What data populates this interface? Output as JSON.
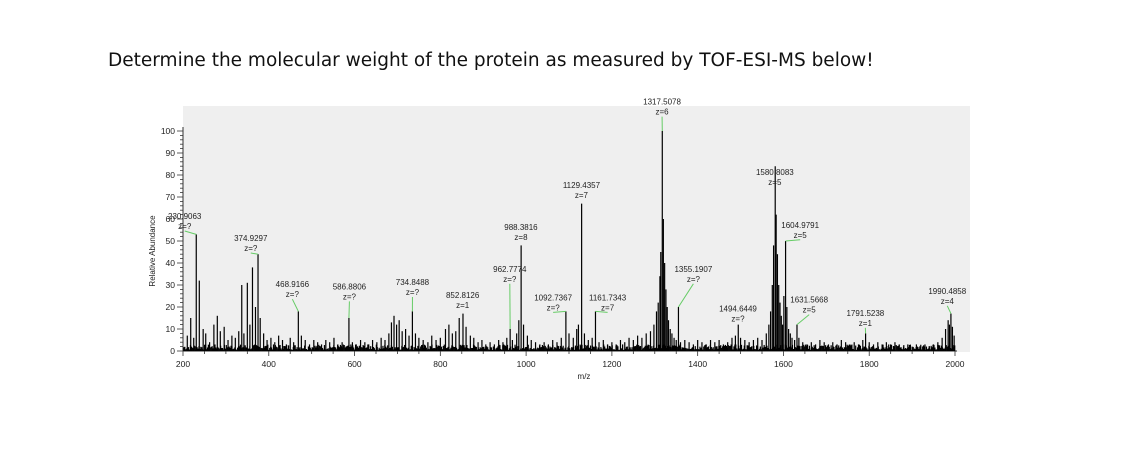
{
  "question": "Determine the molecular weight of the protein as measured by TOF-ESI-MS below!",
  "chart_data": {
    "type": "bar",
    "title": "",
    "xlabel": "m/z",
    "ylabel": "Relative Abundance",
    "xlim": [
      200,
      2000
    ],
    "ylim": [
      0,
      100
    ],
    "x_ticks": [
      200,
      400,
      600,
      800,
      1000,
      1200,
      1400,
      1600,
      1800,
      2000
    ],
    "y_ticks": [
      0,
      10,
      20,
      30,
      40,
      50,
      60,
      70,
      80,
      90,
      100
    ],
    "grid": false,
    "background": "#efefef",
    "bar_color": "#000000",
    "leader_color": "#66cc66",
    "peaks": [
      {
        "mz": 230.9063,
        "intensity": 53,
        "label": "230.9063",
        "charge": "z=?",
        "lx": 204,
        "ly": 60
      },
      {
        "mz": 374.9297,
        "intensity": 44,
        "label": "374.9297",
        "charge": "z=?",
        "lx": 358,
        "ly": 50
      },
      {
        "mz": 468.9166,
        "intensity": 18,
        "label": "468.9166",
        "charge": "z=?",
        "lx": 455,
        "ly": 29
      },
      {
        "mz": 586.8806,
        "intensity": 15,
        "label": "586.8806",
        "charge": "z=?",
        "lx": 588,
        "ly": 28
      },
      {
        "mz": 734.8488,
        "intensity": 18,
        "label": "734.8488",
        "charge": "z=?",
        "lx": 735,
        "ly": 30
      },
      {
        "mz": 852.8126,
        "intensity": 17,
        "label": "852.8126",
        "charge": "z=1",
        "lx": 852,
        "ly": 24
      },
      {
        "mz": 962.7774,
        "intensity": 10,
        "label": "962.7774",
        "charge": "z=?",
        "lx": 962,
        "ly": 36
      },
      {
        "mz": 988.3816,
        "intensity": 48,
        "label": "988.3816",
        "charge": "z=8",
        "lx": 988,
        "ly": 55
      },
      {
        "mz": 1092.7367,
        "intensity": 18,
        "label": "1092.7367",
        "charge": "z=?",
        "lx": 1063,
        "ly": 23
      },
      {
        "mz": 1129.4357,
        "intensity": 67,
        "label": "1129.4357",
        "charge": "z=7",
        "lx": 1129,
        "ly": 74
      },
      {
        "mz": 1161.7343,
        "intensity": 18,
        "label": "1161.7343",
        "charge": "z=7",
        "lx": 1190,
        "ly": 23
      },
      {
        "mz": 1317.5078,
        "intensity": 100,
        "label": "1317.5078",
        "charge": "z=6",
        "lx": 1317,
        "ly": 112
      },
      {
        "mz": 1355.1907,
        "intensity": 20,
        "label": "1355.1907",
        "charge": "z=?",
        "lx": 1390,
        "ly": 36
      },
      {
        "mz": 1494.6449,
        "intensity": 12,
        "label": "1494.6449",
        "charge": "z=?",
        "lx": 1494,
        "ly": 18
      },
      {
        "mz": 1580.8083,
        "intensity": 84,
        "label": "1580.8083",
        "charge": "z=5",
        "lx": 1580,
        "ly": 80
      },
      {
        "mz": 1604.9791,
        "intensity": 50,
        "label": "1604.9791",
        "charge": "z=5",
        "lx": 1639,
        "ly": 56
      },
      {
        "mz": 1631.5668,
        "intensity": 12,
        "label": "1631.5668",
        "charge": "z=5",
        "lx": 1660,
        "ly": 22
      },
      {
        "mz": 1791.5238,
        "intensity": 8,
        "label": "1791.5238",
        "charge": "z=1",
        "lx": 1791,
        "ly": 16
      },
      {
        "mz": 1990.4858,
        "intensity": 17,
        "label": "1990.4858",
        "charge": "z=4",
        "lx": 1982,
        "ly": 26
      }
    ],
    "other_peaks": [
      [
        210,
        7
      ],
      [
        218,
        15
      ],
      [
        225,
        6
      ],
      [
        238,
        32
      ],
      [
        247,
        10
      ],
      [
        253,
        8
      ],
      [
        262,
        4
      ],
      [
        272,
        12
      ],
      [
        280,
        16
      ],
      [
        287,
        9
      ],
      [
        296,
        11
      ],
      [
        305,
        5
      ],
      [
        314,
        7
      ],
      [
        322,
        6
      ],
      [
        330,
        9
      ],
      [
        337,
        30
      ],
      [
        342,
        8
      ],
      [
        350,
        31
      ],
      [
        356,
        12
      ],
      [
        362,
        38
      ],
      [
        369,
        20
      ],
      [
        380,
        15
      ],
      [
        388,
        8
      ],
      [
        396,
        5
      ],
      [
        405,
        6
      ],
      [
        414,
        4
      ],
      [
        423,
        7
      ],
      [
        432,
        5
      ],
      [
        441,
        3
      ],
      [
        450,
        6
      ],
      [
        458,
        4
      ],
      [
        476,
        7
      ],
      [
        485,
        5
      ],
      [
        495,
        3
      ],
      [
        505,
        5
      ],
      [
        514,
        4
      ],
      [
        523,
        3
      ],
      [
        533,
        5
      ],
      [
        542,
        4
      ],
      [
        552,
        6
      ],
      [
        561,
        3
      ],
      [
        571,
        4
      ],
      [
        580,
        2
      ],
      [
        595,
        4
      ],
      [
        604,
        3
      ],
      [
        614,
        5
      ],
      [
        624,
        4
      ],
      [
        633,
        3
      ],
      [
        642,
        5
      ],
      [
        652,
        4
      ],
      [
        662,
        6
      ],
      [
        671,
        5
      ],
      [
        680,
        8
      ],
      [
        686,
        13
      ],
      [
        692,
        16
      ],
      [
        698,
        12
      ],
      [
        704,
        14
      ],
      [
        711,
        9
      ],
      [
        719,
        10
      ],
      [
        727,
        7
      ],
      [
        742,
        8
      ],
      [
        750,
        6
      ],
      [
        760,
        5
      ],
      [
        771,
        4
      ],
      [
        780,
        7
      ],
      [
        790,
        5
      ],
      [
        800,
        6
      ],
      [
        812,
        10
      ],
      [
        820,
        12
      ],
      [
        828,
        8
      ],
      [
        836,
        9
      ],
      [
        844,
        15
      ],
      [
        860,
        11
      ],
      [
        870,
        7
      ],
      [
        878,
        6
      ],
      [
        888,
        4
      ],
      [
        897,
        5
      ],
      [
        906,
        3
      ],
      [
        916,
        4
      ],
      [
        926,
        3
      ],
      [
        936,
        5
      ],
      [
        946,
        4
      ],
      [
        955,
        6
      ],
      [
        968,
        5
      ],
      [
        978,
        8
      ],
      [
        983,
        14
      ],
      [
        994,
        12
      ],
      [
        1003,
        7
      ],
      [
        1012,
        5
      ],
      [
        1022,
        4
      ],
      [
        1032,
        3
      ],
      [
        1042,
        4
      ],
      [
        1052,
        3
      ],
      [
        1062,
        5
      ],
      [
        1072,
        4
      ],
      [
        1082,
        6
      ],
      [
        1100,
        8
      ],
      [
        1110,
        6
      ],
      [
        1118,
        10
      ],
      [
        1122,
        12
      ],
      [
        1136,
        8
      ],
      [
        1145,
        5
      ],
      [
        1154,
        6
      ],
      [
        1170,
        4
      ],
      [
        1180,
        5
      ],
      [
        1190,
        3
      ],
      [
        1200,
        4
      ],
      [
        1210,
        3
      ],
      [
        1220,
        5
      ],
      [
        1230,
        4
      ],
      [
        1240,
        6
      ],
      [
        1250,
        5
      ],
      [
        1260,
        7
      ],
      [
        1270,
        6
      ],
      [
        1280,
        8
      ],
      [
        1290,
        9
      ],
      [
        1298,
        12
      ],
      [
        1304,
        18
      ],
      [
        1308,
        22
      ],
      [
        1312,
        34
      ],
      [
        1314,
        45
      ],
      [
        1320,
        60
      ],
      [
        1323,
        40
      ],
      [
        1326,
        28
      ],
      [
        1329,
        20
      ],
      [
        1332,
        14
      ],
      [
        1336,
        10
      ],
      [
        1340,
        8
      ],
      [
        1345,
        6
      ],
      [
        1350,
        5
      ],
      [
        1360,
        4
      ],
      [
        1370,
        5
      ],
      [
        1380,
        4
      ],
      [
        1390,
        3
      ],
      [
        1400,
        5
      ],
      [
        1410,
        4
      ],
      [
        1420,
        3
      ],
      [
        1430,
        5
      ],
      [
        1440,
        4
      ],
      [
        1450,
        5
      ],
      [
        1460,
        3
      ],
      [
        1470,
        4
      ],
      [
        1480,
        6
      ],
      [
        1488,
        7
      ],
      [
        1500,
        6
      ],
      [
        1510,
        5
      ],
      [
        1520,
        4
      ],
      [
        1530,
        5
      ],
      [
        1540,
        6
      ],
      [
        1550,
        5
      ],
      [
        1560,
        8
      ],
      [
        1566,
        12
      ],
      [
        1570,
        18
      ],
      [
        1574,
        30
      ],
      [
        1577,
        48
      ],
      [
        1583,
        62
      ],
      [
        1586,
        44
      ],
      [
        1589,
        30
      ],
      [
        1592,
        22
      ],
      [
        1595,
        16
      ],
      [
        1598,
        12
      ],
      [
        1601,
        25
      ],
      [
        1608,
        20
      ],
      [
        1612,
        10
      ],
      [
        1616,
        8
      ],
      [
        1620,
        6
      ],
      [
        1626,
        5
      ],
      [
        1636,
        6
      ],
      [
        1645,
        4
      ],
      [
        1655,
        3
      ],
      [
        1665,
        4
      ],
      [
        1675,
        3
      ],
      [
        1685,
        5
      ],
      [
        1695,
        4
      ],
      [
        1705,
        3
      ],
      [
        1715,
        4
      ],
      [
        1725,
        3
      ],
      [
        1735,
        5
      ],
      [
        1745,
        4
      ],
      [
        1755,
        3
      ],
      [
        1765,
        4
      ],
      [
        1775,
        3
      ],
      [
        1785,
        5
      ],
      [
        1800,
        4
      ],
      [
        1810,
        3
      ],
      [
        1820,
        4
      ],
      [
        1830,
        3
      ],
      [
        1840,
        4
      ],
      [
        1850,
        3
      ],
      [
        1860,
        4
      ],
      [
        1870,
        3
      ],
      [
        1880,
        2
      ],
      [
        1890,
        3
      ],
      [
        1900,
        2
      ],
      [
        1910,
        3
      ],
      [
        1920,
        2
      ],
      [
        1930,
        3
      ],
      [
        1940,
        2
      ],
      [
        1950,
        3
      ],
      [
        1960,
        4
      ],
      [
        1970,
        6
      ],
      [
        1978,
        10
      ],
      [
        1984,
        14
      ],
      [
        1987,
        12
      ],
      [
        1994,
        11
      ],
      [
        1998,
        7
      ]
    ]
  }
}
